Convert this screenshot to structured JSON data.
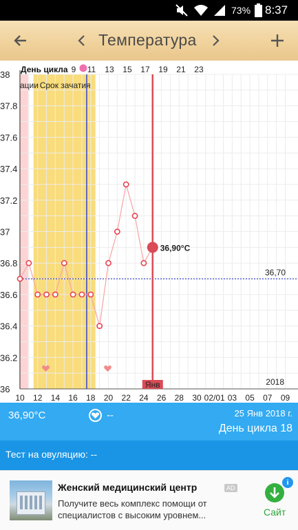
{
  "status_bar": {
    "battery_percent": "73%",
    "time": "8:37",
    "icons": [
      "mute-icon",
      "wifi-icon",
      "signal-icon",
      "battery-icon"
    ]
  },
  "toolbar": {
    "title": "Температура",
    "back_icon": "arrow-left-icon",
    "prev_icon": "chevron-left-icon",
    "next_icon": "chevron-right-icon",
    "add_icon": "plus-icon"
  },
  "chart": {
    "cycle_day_label": "День цикла",
    "top_labels": [
      "ации",
      "Срок зачатия"
    ],
    "month_marker": "Янв",
    "year_label": "2018",
    "reference_value_label": "36,70",
    "selected_value_label": "36,90°C",
    "colors": {
      "period": "#fcd4d4",
      "fertile": "#f9dc7b",
      "line": "#f7a9a9",
      "marker_stroke": "#e8414f",
      "selected": "#d94b56",
      "ovulation_line": "#3344cc",
      "reference_line": "#2233cc"
    }
  },
  "chart_data": {
    "type": "line",
    "ylim": [
      36,
      38
    ],
    "y_ticks": [
      "38",
      "37.8",
      "37.6",
      "37.4",
      "37.2",
      "37",
      "36.8",
      "36.6",
      "36.4",
      "36.2",
      "36"
    ],
    "x_date_ticks": [
      "10",
      "12",
      "14",
      "16",
      "18",
      "20",
      "22",
      "24",
      "26",
      "28",
      "30",
      "02/01",
      "03",
      "05",
      "07",
      "09"
    ],
    "cycle_day_ticks": [
      "9",
      "11",
      "13",
      "15",
      "17",
      "19",
      "21",
      "23"
    ],
    "series": [
      {
        "x": [
          10,
          11,
          12,
          13,
          14,
          15,
          16,
          17,
          18,
          19,
          20,
          21,
          22,
          23,
          24,
          25
        ],
        "values": [
          36.7,
          36.8,
          36.6,
          36.6,
          36.6,
          36.8,
          36.6,
          36.6,
          36.6,
          36.4,
          36.8,
          37.0,
          37.3,
          37.1,
          36.8,
          36.9
        ]
      }
    ],
    "reference_line": 36.7,
    "selected_point": {
      "x": 25,
      "value": 36.9
    },
    "period_days": [
      10
    ],
    "fertile_window": [
      12,
      19
    ],
    "ovulation_day": 17,
    "intercourse_days": [
      13,
      20
    ]
  },
  "info": {
    "temperature": "36,90°C",
    "intercourse_value": "--",
    "date": "25 Янв 2018 г.",
    "cycle_day": "День цикла 18"
  },
  "ovulation_test": {
    "text": "Тест на овуляцию: --"
  },
  "ad": {
    "title": "Женский медицинский центр",
    "badge": "AD",
    "description": "Получите весь комплекс помощи от специалистов с высоким уровнем...",
    "action_label": "Сайт"
  }
}
